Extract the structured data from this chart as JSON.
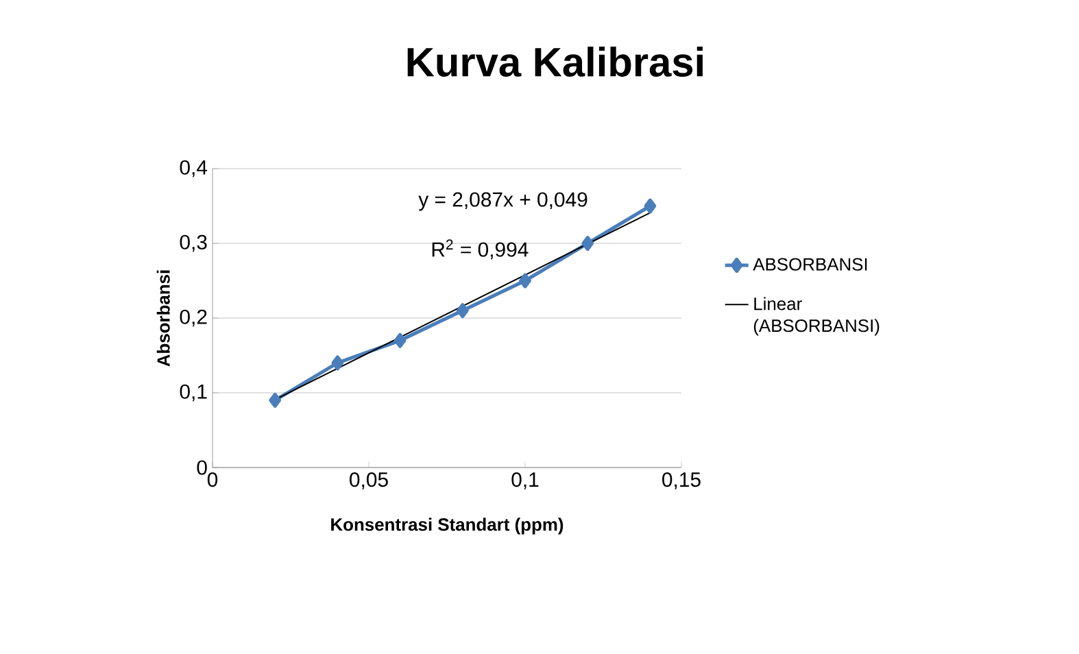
{
  "chart_data": {
    "type": "line",
    "title": "Kurva Kalibrasi",
    "xlabel": "Konsentrasi Standart (ppm)",
    "ylabel": "Absorbansi",
    "x": [
      0.02,
      0.04,
      0.06,
      0.08,
      0.1,
      0.12,
      0.14
    ],
    "series": [
      {
        "name": "ABSORBANSI",
        "color": "#4a7ebb",
        "values": [
          0.09,
          0.14,
          0.17,
          0.21,
          0.25,
          0.3,
          0.35
        ],
        "marker": "diamond"
      },
      {
        "name": "Linear (ABSORBANSI)",
        "type": "line",
        "color": "#000000",
        "x": [
          0.02,
          0.14
        ],
        "values": [
          0.091,
          0.341
        ],
        "marker": "none"
      }
    ],
    "xlim": [
      0,
      0.15
    ],
    "xticks": [
      0,
      {
        "value": 0.05,
        "label": "0,05"
      },
      {
        "value": 0.1,
        "label": "0,1"
      },
      {
        "value": 0.15,
        "label": "0,15"
      }
    ],
    "ylim": [
      0,
      0.4
    ],
    "yticks": [
      0,
      {
        "value": 0.1,
        "label": "0,1"
      },
      {
        "value": 0.2,
        "label": "0,2"
      },
      {
        "value": 0.3,
        "label": "0,3"
      },
      {
        "value": 0.4,
        "label": "0,4"
      }
    ],
    "annotations": [
      "y = 2,087x + 0,049",
      "R$^{2}$ = 0,994"
    ],
    "grid": "y",
    "legend": "right",
    "line_style": "solid"
  }
}
